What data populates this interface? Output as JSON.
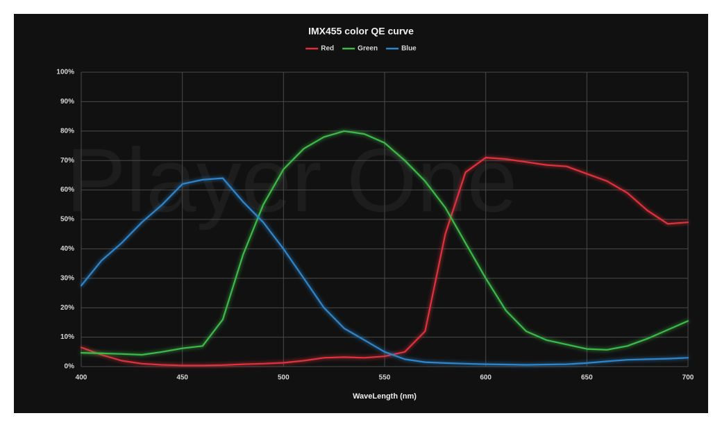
{
  "chart_data": {
    "type": "line",
    "title": "IMX455 color QE curve",
    "watermark": "Player One",
    "x_label": "WaveLength (nm)",
    "x": [
      400,
      410,
      420,
      430,
      440,
      450,
      460,
      470,
      480,
      490,
      500,
      510,
      520,
      530,
      540,
      550,
      560,
      570,
      580,
      590,
      600,
      610,
      620,
      630,
      640,
      650,
      660,
      670,
      680,
      690,
      700
    ],
    "series": [
      {
        "name": "Red",
        "color": "#e0303c",
        "values": [
          6.5,
          4,
          2,
          1,
          0.6,
          0.4,
          0.4,
          0.5,
          0.8,
          1,
          1.3,
          2,
          3,
          3.2,
          3,
          3.5,
          5,
          12,
          45,
          66,
          71,
          70.5,
          69.5,
          68.5,
          68,
          65.5,
          63,
          59,
          53,
          48.5,
          49
        ]
      },
      {
        "name": "Green",
        "color": "#3cba4a",
        "values": [
          4.7,
          4.5,
          4.3,
          4,
          5,
          6.2,
          7,
          16,
          38,
          55,
          67,
          74,
          78,
          80,
          79,
          76,
          70,
          63,
          54,
          42,
          30,
          19,
          12,
          9,
          7.5,
          6,
          5.7,
          7,
          9.5,
          12.5,
          15.5
        ]
      },
      {
        "name": "Blue",
        "color": "#2f86cc",
        "values": [
          27.5,
          36,
          42,
          49,
          55,
          62,
          63.5,
          64,
          56,
          49,
          40,
          30,
          20,
          13,
          9,
          5,
          2.5,
          1.5,
          1.2,
          1,
          0.8,
          0.7,
          0.6,
          0.7,
          0.8,
          1.2,
          1.8,
          2.3,
          2.5,
          2.7,
          3
        ]
      }
    ],
    "xlim": [
      400,
      700
    ],
    "xticks": [
      400,
      450,
      500,
      550,
      600,
      650,
      700
    ],
    "ylim": [
      0,
      100
    ],
    "yticks": [
      {
        "value": 0,
        "label": "0%"
      },
      {
        "value": 10,
        "label": "10%"
      },
      {
        "value": 20,
        "label": "20%"
      },
      {
        "value": 30,
        "label": "30%"
      },
      {
        "value": 40,
        "label": "40%"
      },
      {
        "value": 50,
        "label": "50%"
      },
      {
        "value": 60,
        "label": "60%"
      },
      {
        "value": 70,
        "label": "70%"
      },
      {
        "value": 80,
        "label": "80%"
      },
      {
        "value": 90,
        "label": "90%"
      },
      {
        "value": 100,
        "label": "100%"
      }
    ],
    "grid": true,
    "legend": "top"
  }
}
